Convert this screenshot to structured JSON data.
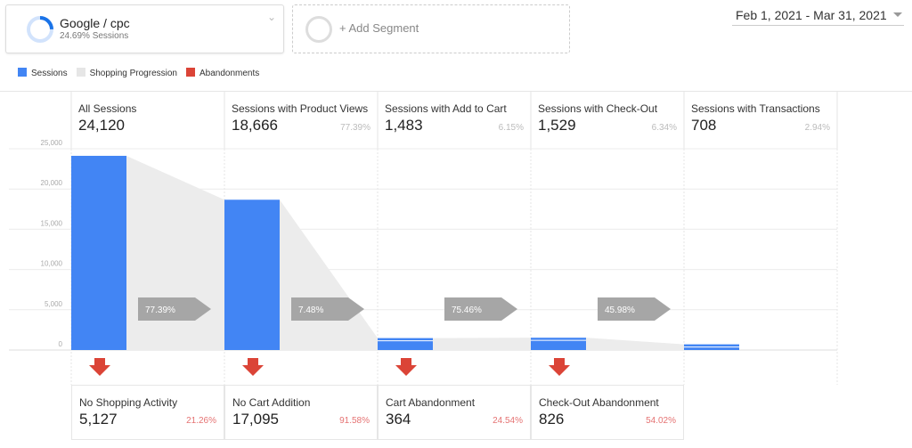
{
  "segment": {
    "name": "Google / cpc",
    "sub": "24.69% Sessions",
    "share": 0.2469
  },
  "add_segment": "+ Add Segment",
  "date_range": "Feb 1, 2021 - Mar 31, 2021",
  "legend": [
    {
      "label": "Sessions",
      "color": "#4285f4"
    },
    {
      "label": "Shopping Progression",
      "color": "#e6e6e6"
    },
    {
      "label": "Abandonments",
      "color": "#db4437"
    }
  ],
  "chart_data": {
    "type": "bar",
    "ylim": [
      0,
      25000
    ],
    "yticks": [
      "0",
      "5,000",
      "10,000",
      "15,000",
      "20,000",
      "25,000"
    ],
    "stages": [
      {
        "title": "All Sessions",
        "value": "24,120",
        "n": 24120,
        "pct": ""
      },
      {
        "title": "Sessions with Product Views",
        "value": "18,666",
        "n": 18666,
        "pct": "77.39%"
      },
      {
        "title": "Sessions with Add to Cart",
        "value": "1,483",
        "n": 1483,
        "pct": "6.15%"
      },
      {
        "title": "Sessions with Check-Out",
        "value": "1,529",
        "n": 1529,
        "pct": "6.34%"
      },
      {
        "title": "Sessions with Transactions",
        "value": "708",
        "n": 708,
        "pct": "2.94%"
      }
    ],
    "progression": [
      "77.39%",
      "7.48%",
      "75.46%",
      "45.98%"
    ],
    "abandonments": [
      {
        "title": "No Shopping Activity",
        "value": "5,127",
        "pct": "21.26%"
      },
      {
        "title": "No Cart Addition",
        "value": "17,095",
        "pct": "91.58%"
      },
      {
        "title": "Cart Abandonment",
        "value": "364",
        "pct": "24.54%"
      },
      {
        "title": "Check-Out Abandonment",
        "value": "826",
        "pct": "54.02%"
      }
    ]
  }
}
